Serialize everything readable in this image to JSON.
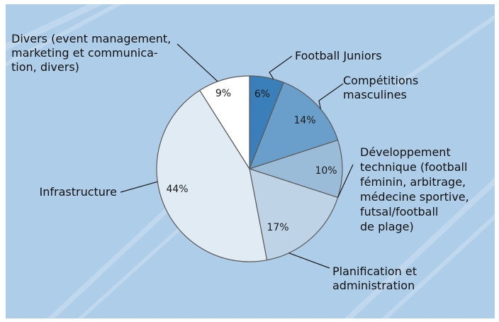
{
  "chart_data": {
    "type": "pie",
    "title": "",
    "start_angle_deg": 0,
    "direction": "clockwise",
    "slices": [
      {
        "name": "Football Juniors",
        "value": 6,
        "label": "6%",
        "color": "#3a7fba",
        "callout": [
          "Football Juniors"
        ]
      },
      {
        "name": "Compétitions masculines",
        "value": 14,
        "label": "14%",
        "color": "#6b9fcb",
        "callout": [
          "Compétitions",
          "masculines"
        ]
      },
      {
        "name": "Développement technique (football féminin, arbitrage, médecine sportive, futsal/football de plage)",
        "value": 10,
        "label": "10%",
        "color": "#9bbcd9",
        "callout": [
          "Développement",
          "technique (football",
          "féminin, arbitrage,",
          "médecine sportive,",
          "futsal/football",
          "de plage)"
        ]
      },
      {
        "name": "Planification et administration",
        "value": 17,
        "label": "17%",
        "color": "#bfd3e6",
        "callout": [
          "Planification et",
          "administration"
        ]
      },
      {
        "name": "Infrastructure",
        "value": 44,
        "label": "44%",
        "color": "#e1ebf4",
        "callout": [
          "Infrastructure"
        ]
      },
      {
        "name": "Divers (event management, marketing et communication, divers)",
        "value": 9,
        "label": "9%",
        "color": "#ffffff",
        "callout": [
          "Divers (event management,",
          "marketing et communica-",
          "tion, divers)"
        ]
      }
    ]
  },
  "colors": {
    "background": "#aecde8",
    "stripe": "#c7ddf0",
    "slice_stroke": "#5a5a5a",
    "leader_line": "#1a1a1a"
  }
}
